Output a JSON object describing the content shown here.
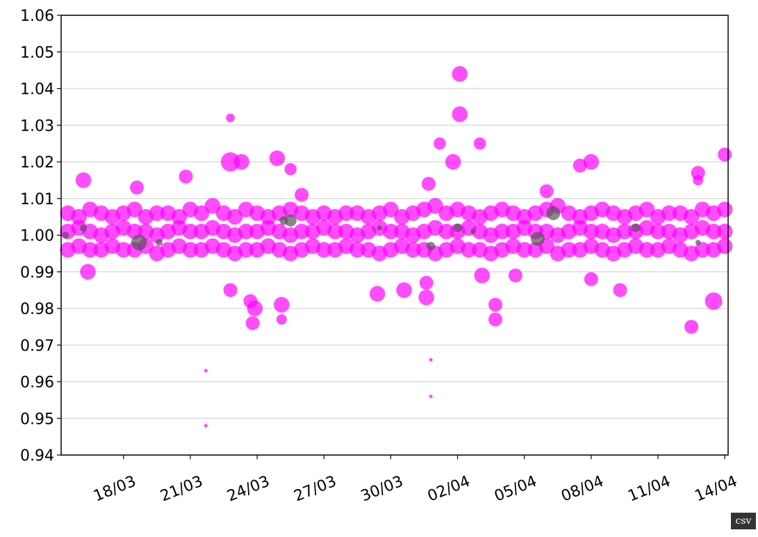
{
  "chart_data": {
    "type": "scatter",
    "xlim": [
      15.2,
      45.15
    ],
    "ylim": [
      0.94,
      1.06
    ],
    "xticks": [
      {
        "value": 18,
        "label": "18/03"
      },
      {
        "value": 21,
        "label": "21/03"
      },
      {
        "value": 24,
        "label": "24/03"
      },
      {
        "value": 27,
        "label": "27/03"
      },
      {
        "value": 30,
        "label": "30/03"
      },
      {
        "value": 33,
        "label": "02/04"
      },
      {
        "value": 36,
        "label": "05/04"
      },
      {
        "value": 39,
        "label": "08/04"
      },
      {
        "value": 42,
        "label": "11/04"
      },
      {
        "value": 45,
        "label": "14/04"
      }
    ],
    "yticks": [
      0.94,
      0.95,
      0.96,
      0.97,
      0.98,
      0.99,
      {
        "value": 1,
        "label": "1.00"
      },
      1.01,
      1.02,
      1.03,
      1.04,
      1.05,
      1.06
    ],
    "grid": true,
    "series": [
      {
        "color": "#ff00ff",
        "x": [
          15.5,
          16,
          16.5,
          17,
          17.5,
          18,
          18.5,
          19,
          19.5,
          20,
          20.5,
          21,
          21.5,
          22,
          22.5,
          23,
          23.5,
          24,
          24.5,
          25,
          25.5,
          26,
          26.5,
          27,
          27.5,
          28,
          28.5,
          29,
          29.5,
          30,
          30.5,
          31,
          31.5,
          32,
          32.5,
          33,
          33.5,
          34,
          34.5,
          35,
          35.5,
          36,
          36.5,
          37,
          37.5,
          38,
          38.5,
          39,
          39.5,
          40,
          40.5,
          41,
          41.5,
          42,
          42.5,
          43,
          43.5,
          44,
          44.5,
          45
        ],
        "values": [
          1.006,
          1.005,
          1.007,
          1.006,
          1.005,
          1.006,
          1.007,
          1.005,
          1.006,
          1.006,
          1.005,
          1.007,
          1.006,
          1.008,
          1.006,
          1.005,
          1.007,
          1.006,
          1.005,
          1.006,
          1.007,
          1.006,
          1.005,
          1.006,
          1.005,
          1.006,
          1.006,
          1.005,
          1.006,
          1.007,
          1.005,
          1.006,
          1.007,
          1.008,
          1.006,
          1.007,
          1.006,
          1.005,
          1.006,
          1.007,
          1.006,
          1.005,
          1.006,
          1.007,
          1.008,
          1.006,
          1.005,
          1.006,
          1.007,
          1.006,
          1.005,
          1.006,
          1.007,
          1.005,
          1.006,
          1.006,
          1.005,
          1.007,
          1.006,
          1.007
        ],
        "sizes": [
          9,
          9,
          9,
          9,
          9,
          9,
          9,
          9,
          9,
          9,
          9,
          9,
          9,
          9,
          9,
          9,
          9,
          9,
          9,
          9,
          9,
          9,
          9,
          9,
          9,
          9,
          9,
          9,
          9,
          9,
          9,
          9,
          9,
          9,
          9,
          9,
          9,
          9,
          9,
          9,
          9,
          9,
          9,
          9,
          9,
          9,
          9,
          9,
          9,
          9,
          9,
          9,
          9,
          9,
          9,
          9,
          9,
          9,
          9,
          9
        ]
      },
      {
        "color": "#ff00ff",
        "x": [
          15.5,
          16,
          16.5,
          17,
          17.5,
          18,
          18.5,
          19,
          19.5,
          20,
          20.5,
          21,
          21.5,
          22,
          22.5,
          23,
          23.5,
          24,
          24.5,
          25,
          25.5,
          26,
          26.5,
          27,
          27.5,
          28,
          28.5,
          29,
          29.5,
          30,
          30.5,
          31,
          31.5,
          32,
          32.5,
          33,
          33.5,
          34,
          34.5,
          35,
          35.5,
          36,
          36.5,
          37,
          37.5,
          38,
          38.5,
          39,
          39.5,
          40,
          40.5,
          41,
          41.5,
          42,
          42.5,
          43,
          43.5,
          44,
          44.5,
          45
        ],
        "values": [
          1.001,
          1.002,
          1.001,
          1.0,
          1.001,
          1.002,
          1.001,
          1.001,
          1.0,
          1.001,
          1.002,
          1.001,
          1.001,
          1.002,
          1.001,
          1.0,
          1.001,
          1.001,
          1.002,
          1.001,
          1.0,
          1.001,
          1.001,
          1.002,
          1.001,
          1.001,
          1.0,
          1.001,
          1.002,
          1.001,
          1.001,
          1.0,
          1.001,
          1.002,
          1.001,
          1.001,
          1.002,
          1.001,
          1.0,
          1.001,
          1.001,
          1.002,
          1.001,
          1.001,
          1.0,
          1.001,
          1.002,
          1.001,
          1.001,
          1.0,
          1.001,
          1.001,
          1.002,
          1.001,
          1.001,
          1.0,
          1.001,
          1.002,
          1.001,
          1.001
        ],
        "sizes": [
          9,
          9,
          9,
          9,
          9,
          9,
          9,
          9,
          9,
          9,
          9,
          9,
          9,
          9,
          9,
          9,
          9,
          9,
          9,
          9,
          9,
          9,
          9,
          9,
          9,
          9,
          9,
          9,
          9,
          9,
          9,
          9,
          9,
          9,
          9,
          9,
          9,
          9,
          9,
          9,
          9,
          9,
          9,
          9,
          9,
          9,
          9,
          9,
          9,
          9,
          9,
          9,
          9,
          9,
          9,
          9,
          9,
          9,
          9,
          9
        ]
      },
      {
        "color": "#ff00ff",
        "x": [
          15.5,
          16,
          16.5,
          17,
          17.5,
          18,
          18.5,
          19,
          19.5,
          20,
          20.5,
          21,
          21.5,
          22,
          22.5,
          23,
          23.5,
          24,
          24.5,
          25,
          25.5,
          26,
          26.5,
          27,
          27.5,
          28,
          28.5,
          29,
          29.5,
          30,
          30.5,
          31,
          31.5,
          32,
          32.5,
          33,
          33.5,
          34,
          34.5,
          35,
          35.5,
          36,
          36.5,
          37,
          37.5,
          38,
          38.5,
          39,
          39.5,
          40,
          40.5,
          41,
          41.5,
          42,
          42.5,
          43,
          43.5,
          44,
          44.5,
          45
        ],
        "values": [
          0.996,
          0.997,
          0.996,
          0.996,
          0.997,
          0.996,
          0.996,
          0.997,
          0.995,
          0.996,
          0.997,
          0.996,
          0.996,
          0.997,
          0.996,
          0.995,
          0.996,
          0.996,
          0.997,
          0.996,
          0.995,
          0.996,
          0.997,
          0.996,
          0.996,
          0.997,
          0.996,
          0.996,
          0.995,
          0.996,
          0.997,
          0.996,
          0.996,
          0.995,
          0.996,
          0.997,
          0.996,
          0.996,
          0.995,
          0.996,
          0.997,
          0.996,
          0.996,
          0.997,
          0.995,
          0.996,
          0.996,
          0.997,
          0.996,
          0.995,
          0.996,
          0.997,
          0.996,
          0.996,
          0.997,
          0.996,
          0.995,
          0.996,
          0.996,
          0.997
        ],
        "sizes": [
          9,
          9,
          9,
          9,
          9,
          9,
          9,
          9,
          9,
          9,
          9,
          9,
          9,
          9,
          9,
          9,
          9,
          9,
          9,
          9,
          9,
          9,
          9,
          9,
          9,
          9,
          9,
          9,
          9,
          9,
          9,
          9,
          9,
          9,
          9,
          9,
          9,
          9,
          9,
          9,
          9,
          9,
          9,
          9,
          9,
          9,
          9,
          9,
          9,
          9,
          9,
          9,
          9,
          9,
          9,
          9,
          9,
          9,
          9,
          9
        ]
      },
      {
        "color": "#ff00ff",
        "x": [
          16.4,
          16.2,
          18.6,
          20.8,
          22.8,
          22.8,
          22.8,
          23.3,
          23.7,
          23.8,
          23.9,
          24.9,
          25.1,
          25.1,
          25.5,
          26.0,
          29.4,
          30.6,
          31.6,
          31.6,
          31.7,
          32.2,
          33.1,
          33.1,
          32.8,
          34.0,
          34.1,
          34.7,
          34.7,
          35.6,
          37.0,
          38.5,
          39.0,
          39.0,
          40.3,
          43.8,
          43.5,
          44.5,
          45.0,
          31.8,
          31.8,
          21.7,
          21.7,
          43.8
        ],
        "values": [
          0.99,
          1.015,
          1.013,
          1.016,
          1.02,
          1.032,
          0.985,
          1.02,
          0.982,
          0.976,
          0.98,
          1.021,
          0.981,
          0.977,
          1.018,
          1.011,
          0.984,
          0.985,
          0.983,
          0.987,
          1.014,
          1.025,
          1.044,
          1.033,
          1.02,
          1.025,
          0.989,
          0.977,
          0.981,
          0.989,
          1.012,
          1.019,
          1.02,
          0.988,
          0.985,
          1.017,
          0.975,
          0.982,
          1.022,
          0.966,
          0.956,
          0.963,
          0.948,
          1.015
        ],
        "sizes": [
          9,
          9,
          8,
          8,
          11,
          5,
          8,
          9,
          8,
          8,
          9,
          9,
          9,
          6,
          7,
          8,
          9,
          9,
          9,
          8,
          8,
          7,
          9,
          9,
          9,
          7,
          9,
          8,
          8,
          8,
          8,
          8,
          9,
          8,
          8,
          8,
          8,
          10,
          8,
          2,
          2,
          2,
          2,
          6
        ]
      },
      {
        "color": "#555555",
        "x": [
          18.7,
          25.5,
          25.2,
          37.3,
          36.6,
          33.0,
          31.8,
          16.2,
          15.4,
          41.0,
          19.6,
          29.5,
          43.8,
          33.7
        ],
        "values": [
          0.998,
          1.004,
          1.004,
          1.006,
          0.999,
          1.002,
          0.997,
          1.002,
          1.0,
          1.002,
          0.998,
          1.002,
          0.998,
          1.001
        ],
        "sizes": [
          9,
          7,
          5,
          8,
          8,
          5,
          5,
          4,
          4,
          5,
          4,
          3,
          3,
          3
        ]
      }
    ]
  },
  "csv_button": "csv"
}
